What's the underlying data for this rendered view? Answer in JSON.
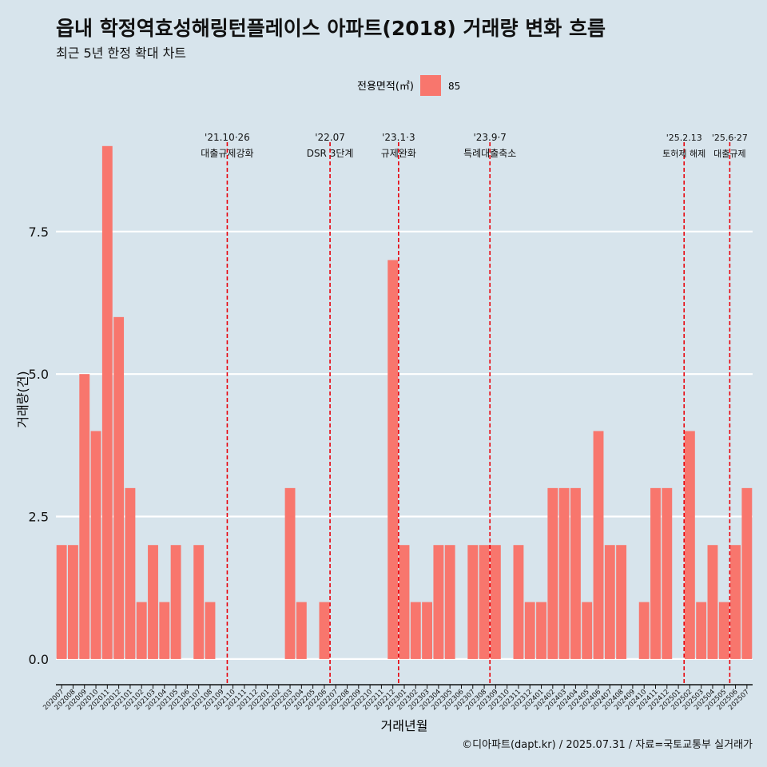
{
  "chart_data": {
    "type": "bar",
    "title": "읍내 학정역효성해링턴플레이스 아파트(2018) 거래량 변화 흐름",
    "subtitle": "최근 5년 한정 확대 차트",
    "xlabel": "거래년월",
    "ylabel": "거래량(건)",
    "caption": "©디아파트(dapt.kr) / 2025.07.31 / 자료=국토교통부 실거래가",
    "legend": {
      "title": "전용면적(㎡)",
      "position": "top",
      "color": "#f8766d"
    },
    "ylim": [
      -0.45,
      9.6
    ],
    "yticks": [
      0.0,
      2.5,
      5.0,
      7.5
    ],
    "ytick_labels": [
      "0.0",
      "2.5",
      "5.0",
      "7.5"
    ],
    "grid": true,
    "categories": [
      "202007",
      "202008",
      "202009",
      "202010",
      "202011",
      "202012",
      "202101",
      "202102",
      "202103",
      "202104",
      "202105",
      "202106",
      "202107",
      "202108",
      "202109",
      "202110",
      "202111",
      "202112",
      "202201",
      "202202",
      "202203",
      "202204",
      "202205",
      "202206",
      "202207",
      "202208",
      "202209",
      "202210",
      "202211",
      "202212",
      "202301",
      "202302",
      "202303",
      "202304",
      "202305",
      "202306",
      "202307",
      "202308",
      "202309",
      "202310",
      "202311",
      "202312",
      "202401",
      "202402",
      "202403",
      "202404",
      "202405",
      "202406",
      "202407",
      "202408",
      "202409",
      "202410",
      "202411",
      "202412",
      "202501",
      "202502",
      "202503",
      "202504",
      "202505",
      "202506",
      "202507"
    ],
    "series": [
      {
        "name": "85",
        "values": [
          2,
          2,
          5,
          4,
          9,
          6,
          3,
          1,
          2,
          1,
          2,
          0,
          2,
          1,
          0,
          0,
          0,
          0,
          0,
          0,
          3,
          1,
          0,
          1,
          0,
          0,
          0,
          0,
          0,
          7,
          2,
          1,
          1,
          2,
          2,
          0,
          2,
          2,
          2,
          0,
          2,
          1,
          1,
          3,
          3,
          3,
          1,
          4,
          2,
          2,
          0,
          1,
          3,
          3,
          0,
          4,
          1,
          2,
          1,
          2,
          3
        ]
      }
    ],
    "annotations": [
      {
        "category": "202110",
        "date": "'21.10·26",
        "text": "대출규제강화"
      },
      {
        "category": "202207",
        "date": "'22.07",
        "text": "DSR 3단계"
      },
      {
        "category": "202301",
        "date": "'23.1·3",
        "text": "규제완화"
      },
      {
        "category": "202309",
        "date": "'23.9·7",
        "text": "특례대출축소"
      },
      {
        "category": "202502",
        "date": "'25.2.13",
        "text": "토허제 해제"
      },
      {
        "category": "202506",
        "date": "'25.6·27",
        "text": "대출규제"
      }
    ],
    "annotation_color": "#e8000b"
  }
}
